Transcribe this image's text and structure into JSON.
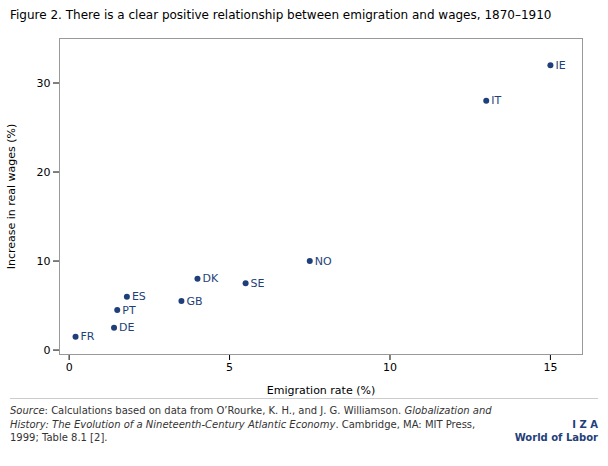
{
  "chart_data": {
    "type": "scatter",
    "title": "Figure 2. There is a clear positive relationship between emigration and wages, 1870–1910",
    "xlabel": "Emigration rate (%)",
    "ylabel": "Increase in real wages (%)",
    "x": [
      0.2,
      1.4,
      1.5,
      1.8,
      3.5,
      4.0,
      5.5,
      7.5,
      13.0,
      15.0
    ],
    "values": [
      1.5,
      2.5,
      4.5,
      6.0,
      5.5,
      8.0,
      7.5,
      10.0,
      28.0,
      32.0
    ],
    "labels": [
      "FR",
      "DE",
      "PT",
      "ES",
      "GB",
      "DK",
      "SE",
      "NO",
      "IT",
      "IE"
    ],
    "color": "#1f3f7a",
    "xlim": [
      -0.3,
      16
    ],
    "ylim": [
      -0.5,
      35
    ],
    "xticks": [
      0,
      5,
      10,
      15
    ],
    "yticks": [
      0,
      10,
      20,
      30
    ],
    "grid": false,
    "caption": [
      "Source",
      ": Calculations based on data from O’Rourke, K. H., and J. G. Williamson. ",
      "Globalization and History: The Evolution of a Nineteenth-Century Atlantic Economy",
      ". Cambridge, MA: MIT Press, 1999; Table 8.1 [2]."
    ],
    "annotations": [
      "I Z A",
      "World of Labor"
    ]
  }
}
